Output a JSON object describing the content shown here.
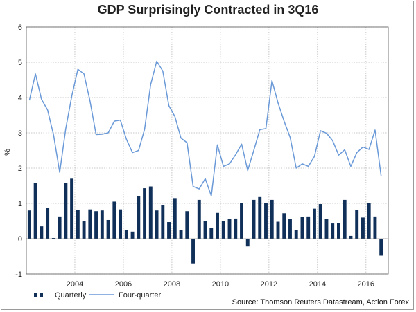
{
  "title": "GDP Surprisingly Contracted in 3Q16",
  "source": "Source: Thomson Reuters Datastream, Action Forex",
  "colors": {
    "bar": "#10305a",
    "line": "#6a99d8",
    "grid": "#b8b8b8",
    "axis": "#555555"
  },
  "chart_data": {
    "type": "bar",
    "title": "GDP Surprisingly Contracted in 3Q16",
    "ylabel": "%",
    "xlabel": "",
    "ylim": [
      -1,
      6
    ],
    "xlim": [
      2002.0,
      2016.92
    ],
    "yticks": [
      -1,
      0,
      1,
      2,
      3,
      4,
      5,
      6
    ],
    "xticks": [
      2004,
      2006,
      2008,
      2010,
      2012,
      2014,
      2016
    ],
    "grid": true,
    "legend_position": "bottom-left",
    "x": [
      2002.125,
      2002.375,
      2002.625,
      2002.875,
      2003.125,
      2003.375,
      2003.625,
      2003.875,
      2004.125,
      2004.375,
      2004.625,
      2004.875,
      2005.125,
      2005.375,
      2005.625,
      2005.875,
      2006.125,
      2006.375,
      2006.625,
      2006.875,
      2007.125,
      2007.375,
      2007.625,
      2007.875,
      2008.125,
      2008.375,
      2008.625,
      2008.875,
      2009.125,
      2009.375,
      2009.625,
      2009.875,
      2010.125,
      2010.375,
      2010.625,
      2010.875,
      2011.125,
      2011.375,
      2011.625,
      2011.875,
      2012.125,
      2012.375,
      2012.625,
      2012.875,
      2013.125,
      2013.375,
      2013.625,
      2013.875,
      2014.125,
      2014.375,
      2014.625,
      2014.875,
      2015.125,
      2015.375,
      2015.625,
      2015.875,
      2016.125,
      2016.375,
      2016.625
    ],
    "series": [
      {
        "name": "Quarterly",
        "type": "bar",
        "values": [
          0.8,
          1.57,
          0.35,
          0.88,
          0.02,
          0.63,
          1.57,
          1.7,
          0.82,
          0.5,
          0.83,
          0.78,
          0.8,
          0.53,
          1.05,
          0.83,
          0.25,
          0.2,
          1.2,
          1.43,
          1.48,
          0.8,
          0.95,
          0.47,
          1.15,
          0.25,
          0.78,
          -0.7,
          1.1,
          0.5,
          0.3,
          0.73,
          0.5,
          0.55,
          0.57,
          1.0,
          -0.22,
          1.1,
          1.18,
          1.02,
          1.1,
          0.48,
          0.72,
          0.55,
          0.24,
          0.62,
          0.63,
          0.85,
          0.98,
          0.55,
          0.43,
          0.45,
          1.1,
          0.08,
          0.82,
          0.6,
          1.0,
          0.63,
          -0.48
        ]
      },
      {
        "name": "Four-quarter",
        "type": "line",
        "values": [
          3.92,
          4.67,
          3.95,
          3.65,
          2.93,
          1.88,
          3.12,
          4.05,
          4.8,
          4.67,
          3.9,
          2.95,
          2.96,
          3.0,
          3.33,
          3.36,
          2.82,
          2.44,
          2.5,
          3.1,
          4.37,
          5.03,
          4.75,
          3.77,
          3.46,
          2.85,
          2.72,
          1.48,
          1.41,
          1.7,
          1.21,
          2.66,
          2.05,
          2.12,
          2.38,
          2.68,
          1.93,
          2.5,
          3.09,
          3.12,
          4.48,
          3.85,
          3.33,
          2.87,
          2.0,
          2.12,
          2.05,
          2.33,
          3.06,
          2.99,
          2.78,
          2.37,
          2.52,
          2.05,
          2.44,
          2.6,
          2.53,
          3.08,
          1.78
        ]
      }
    ]
  }
}
